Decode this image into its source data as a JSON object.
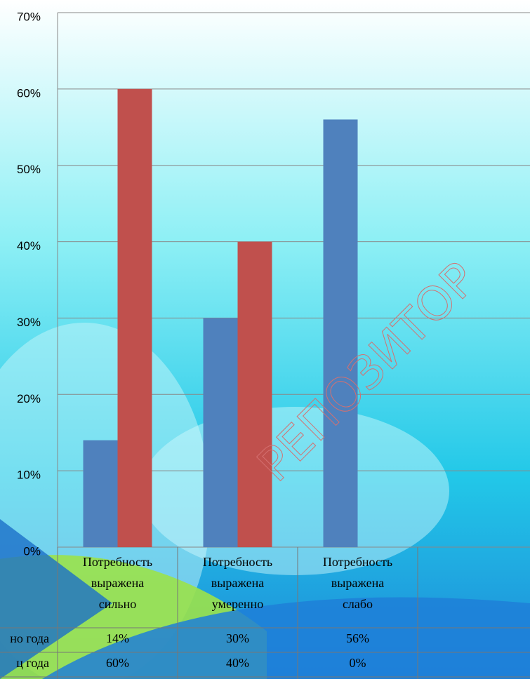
{
  "chart_data": {
    "type": "bar",
    "categories": [
      [
        "Потребность",
        "выражена",
        "сильно"
      ],
      [
        "Потребность",
        "выражена",
        "умеренно"
      ],
      [
        "Потребность",
        "выражена",
        "слабо"
      ],
      null
    ],
    "series": [
      {
        "name": "но года",
        "color": "#4f81bd",
        "values": [
          14,
          30,
          56,
          null
        ],
        "value_labels": [
          "14%",
          "30%",
          "56%",
          null
        ]
      },
      {
        "name": "ц года",
        "color": "#c0504d",
        "values": [
          60,
          40,
          0,
          null
        ],
        "value_labels": [
          "60%",
          "40%",
          "0%",
          null
        ]
      }
    ],
    "ylim": [
      0,
      70
    ],
    "yticks": [
      {
        "value": 0,
        "label": "0%"
      },
      {
        "value": 10,
        "label": "10%"
      },
      {
        "value": 20,
        "label": "20%"
      },
      {
        "value": 30,
        "label": "30%"
      },
      {
        "value": 40,
        "label": "40%"
      },
      {
        "value": 50,
        "label": "50%"
      },
      {
        "value": 60,
        "label": "60%"
      },
      {
        "value": 70,
        "label": "70%"
      }
    ],
    "grid": true,
    "watermark": "РЕПОЗИТОР"
  }
}
